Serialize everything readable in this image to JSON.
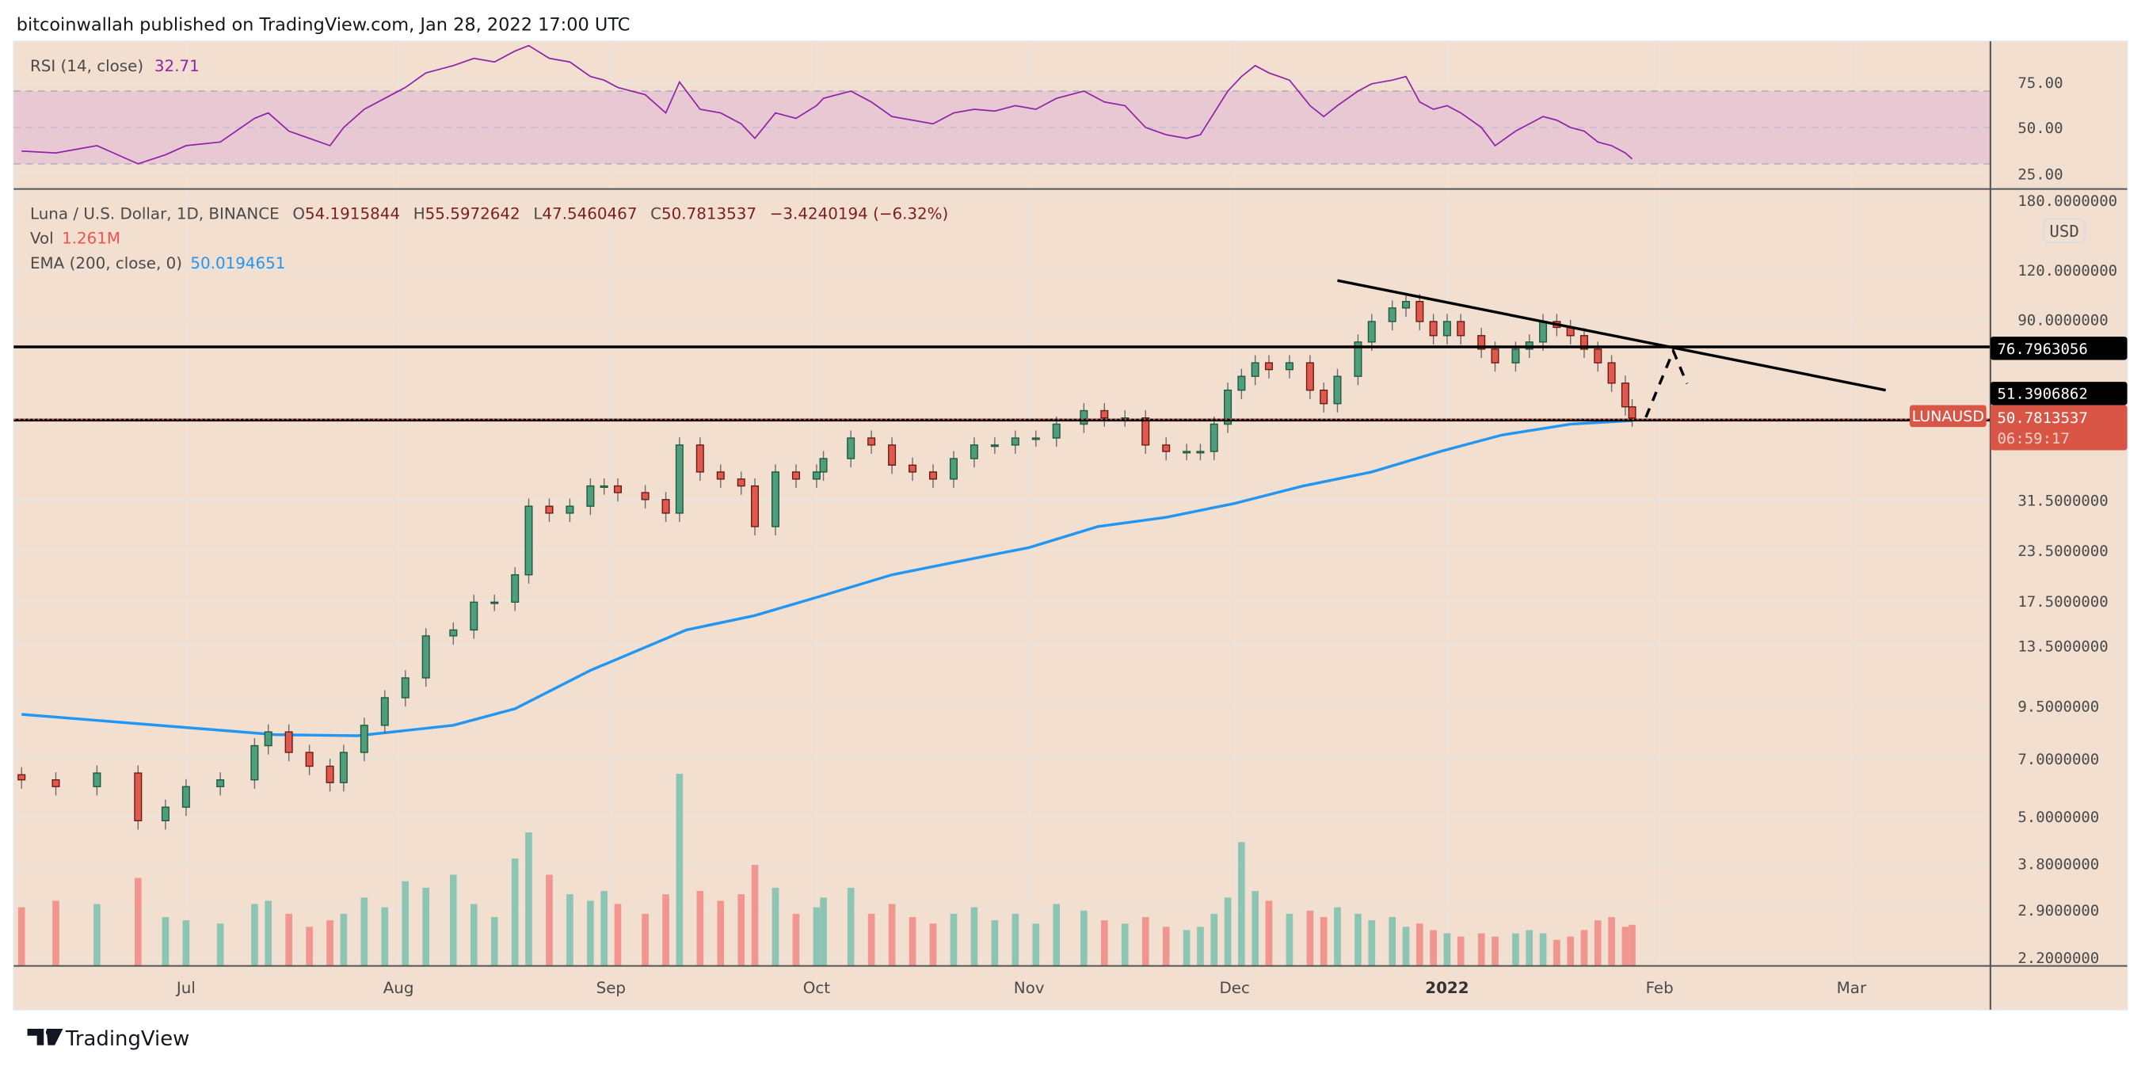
{
  "header": {
    "published": "bitcoinwallah published on TradingView.com, Jan 28, 2022 17:00 UTC"
  },
  "rsi": {
    "label": "RSI (14, close)",
    "value": "32.71",
    "ticks": [
      "75.00",
      "50.00",
      "25.00"
    ],
    "color": "#8e24aa"
  },
  "legend": {
    "symbol": "Luna / U.S. Dollar, 1D, BINANCE",
    "o_label": "O",
    "o": "54.1915844",
    "h_label": "H",
    "h": "55.5972642",
    "l_label": "L",
    "l": "47.5460467",
    "c_label": "C",
    "c": "50.7813537",
    "change": "−3.4240194 (−6.32%)",
    "vol_label": "Vol",
    "vol": "1.261M",
    "ema_label": "EMA (200, close, 0)",
    "ema": "50.0194651"
  },
  "price_axis": {
    "currency": "USD",
    "ticks": [
      "180.0000000",
      "120.0000000",
      "90.0000000",
      "31.5000000",
      "23.5000000",
      "17.5000000",
      "13.5000000",
      "9.5000000",
      "7.0000000",
      "5.0000000",
      "3.8000000",
      "2.9000000",
      "2.2000000"
    ],
    "tick_values": [
      180,
      120,
      90,
      31.5,
      23.5,
      17.5,
      13.5,
      9.5,
      7,
      5,
      3.8,
      2.9,
      2.2
    ],
    "resistance_label": "76.7963056",
    "support_label": "51.3906862",
    "last_price_label": "50.7813537",
    "countdown": "06:59:17",
    "symbol_tag": "LUNAUSD"
  },
  "time_axis": {
    "labels": [
      "Jul",
      "Aug",
      "Sep",
      "Oct",
      "Nov",
      "Dec",
      "2022",
      "Feb",
      "Mar"
    ],
    "label_days": [
      24,
      55,
      86,
      116,
      147,
      177,
      208,
      239,
      267
    ]
  },
  "footer": {
    "brand": "TradingView"
  },
  "colors": {
    "background": "#f2dfcf",
    "up": "#4e9d7d",
    "down": "#e0594f",
    "ema": "#2196f3",
    "rsi_band": "#e8c9d3"
  },
  "chart_data": {
    "type": "candlestick",
    "title": "Luna / U.S. Dollar, 1D, BINANCE",
    "scale": "log",
    "day0": "2021-06-07",
    "ylim": [
      2.2,
      180
    ],
    "levels": {
      "resistance": 76.7963056,
      "support": 51.3906862
    },
    "trendline": {
      "from": {
        "day": 192,
        "price": 113
      },
      "to": {
        "day": 272,
        "price": 59.7
      }
    },
    "projection": [
      {
        "day": 237,
        "price": 51
      },
      {
        "day": 241,
        "price": 75
      },
      {
        "day": 243,
        "price": 62
      }
    ],
    "candles": [
      [
        0,
        6.19,
        1.8,
        37
      ],
      [
        5,
        5.95,
        2.0,
        36
      ],
      [
        11,
        6.44,
        1.9,
        40
      ],
      [
        17,
        4.88,
        2.7,
        30
      ],
      [
        21,
        5.28,
        1.5,
        35
      ],
      [
        24,
        5.95,
        1.4,
        40
      ],
      [
        29,
        6.19,
        1.3,
        42
      ],
      [
        34,
        7.55,
        1.9,
        55
      ],
      [
        36,
        8.18,
        2.0,
        58
      ],
      [
        39,
        7.26,
        1.6,
        48
      ],
      [
        42,
        6.7,
        1.2,
        44
      ],
      [
        45,
        6.09,
        1.4,
        40
      ],
      [
        47,
        7.26,
        1.6,
        50
      ],
      [
        50,
        8.5,
        2.1,
        60
      ],
      [
        53,
        9.98,
        1.8,
        66
      ],
      [
        56,
        11.2,
        2.6,
        72
      ],
      [
        59,
        14.3,
        2.4,
        80
      ],
      [
        63,
        14.8,
        2.8,
        84
      ],
      [
        66,
        17.4,
        1.9,
        88
      ],
      [
        69,
        17.4,
        1.5,
        86
      ],
      [
        72,
        20.4,
        3.3,
        92
      ],
      [
        74,
        30.4,
        4.1,
        95
      ],
      [
        77,
        29.2,
        2.8,
        88
      ],
      [
        80,
        30.4,
        2.2,
        86
      ],
      [
        83,
        34.2,
        2.0,
        78
      ],
      [
        85,
        34.2,
        2.3,
        76
      ],
      [
        87,
        32.9,
        1.9,
        72
      ],
      [
        91,
        31.6,
        1.6,
        68
      ],
      [
        94,
        29.2,
        2.2,
        58
      ],
      [
        96,
        43.4,
        5.9,
        75
      ],
      [
        99,
        37.1,
        2.3,
        60
      ],
      [
        102,
        35.6,
        2.0,
        58
      ],
      [
        105,
        34.2,
        2.2,
        52
      ],
      [
        107,
        27.0,
        3.1,
        44
      ],
      [
        110,
        37.1,
        2.4,
        58
      ],
      [
        113,
        35.6,
        1.6,
        55
      ],
      [
        116,
        37.1,
        1.8,
        62
      ],
      [
        117,
        40.1,
        2.1,
        66
      ],
      [
        121,
        45.2,
        2.4,
        70
      ],
      [
        124,
        43.4,
        1.6,
        64
      ],
      [
        127,
        38.6,
        1.9,
        56
      ],
      [
        130,
        37.1,
        1.5,
        54
      ],
      [
        133,
        35.6,
        1.3,
        52
      ],
      [
        136,
        40.1,
        1.6,
        58
      ],
      [
        139,
        43.4,
        1.8,
        60
      ],
      [
        142,
        43.4,
        1.4,
        59
      ],
      [
        145,
        45.2,
        1.6,
        62
      ],
      [
        148,
        45.2,
        1.3,
        60
      ],
      [
        151,
        49,
        1.9,
        66
      ],
      [
        155,
        53,
        1.7,
        70
      ],
      [
        158,
        50.8,
        1.4,
        64
      ],
      [
        161,
        50.8,
        1.3,
        62
      ],
      [
        164,
        43.4,
        1.5,
        50
      ],
      [
        167,
        41.8,
        1.2,
        46
      ],
      [
        170,
        41.8,
        1.1,
        44
      ],
      [
        172,
        41.8,
        1.2,
        46
      ],
      [
        174,
        49,
        1.6,
        58
      ],
      [
        176,
        59.7,
        2.1,
        70
      ],
      [
        178,
        64.7,
        3.8,
        78
      ],
      [
        180,
        70,
        2.3,
        84
      ],
      [
        182,
        67.3,
        2.0,
        80
      ],
      [
        185,
        70,
        1.6,
        76
      ],
      [
        188,
        59.7,
        1.7,
        62
      ],
      [
        190,
        55.2,
        1.5,
        56
      ],
      [
        192,
        64.7,
        1.8,
        62
      ],
      [
        195,
        79,
        1.6,
        70
      ],
      [
        197,
        89,
        1.4,
        74
      ],
      [
        200,
        96.3,
        1.5,
        76
      ],
      [
        202,
        100,
        1.2,
        78
      ],
      [
        204,
        89,
        1.3,
        64
      ],
      [
        206,
        82,
        1.1,
        60
      ],
      [
        208,
        89,
        1.0,
        62
      ],
      [
        210,
        82,
        0.9,
        58
      ],
      [
        213,
        75.8,
        1.0,
        50
      ],
      [
        215,
        70,
        0.9,
        40
      ],
      [
        218,
        75.8,
        1.0,
        48
      ],
      [
        220,
        79,
        1.1,
        52
      ],
      [
        222,
        89,
        1.0,
        56
      ],
      [
        224,
        86,
        0.8,
        54
      ],
      [
        226,
        82,
        0.9,
        50
      ],
      [
        228,
        75.8,
        1.1,
        48
      ],
      [
        230,
        70,
        1.4,
        42
      ],
      [
        232,
        62.2,
        1.5,
        40
      ],
      [
        234,
        54.19,
        1.2,
        36
      ],
      [
        235,
        50.78,
        1.261,
        32.71
      ]
    ],
    "candle_fields": [
      "day",
      "close",
      "volume_m",
      "rsi"
    ],
    "ema200": [
      [
        0,
        9.06
      ],
      [
        37,
        8.05
      ],
      [
        49,
        8.0
      ],
      [
        63,
        8.5
      ],
      [
        72,
        9.36
      ],
      [
        83,
        11.7
      ],
      [
        97,
        14.8
      ],
      [
        107,
        16.1
      ],
      [
        117,
        18.1
      ],
      [
        127,
        20.4
      ],
      [
        137,
        22.1
      ],
      [
        147,
        23.9
      ],
      [
        157,
        27
      ],
      [
        167,
        28.5
      ],
      [
        177,
        30.9
      ],
      [
        187,
        34.2
      ],
      [
        197,
        37.1
      ],
      [
        207,
        41.8
      ],
      [
        216,
        46
      ],
      [
        226,
        49
      ],
      [
        235,
        50.02
      ]
    ]
  }
}
